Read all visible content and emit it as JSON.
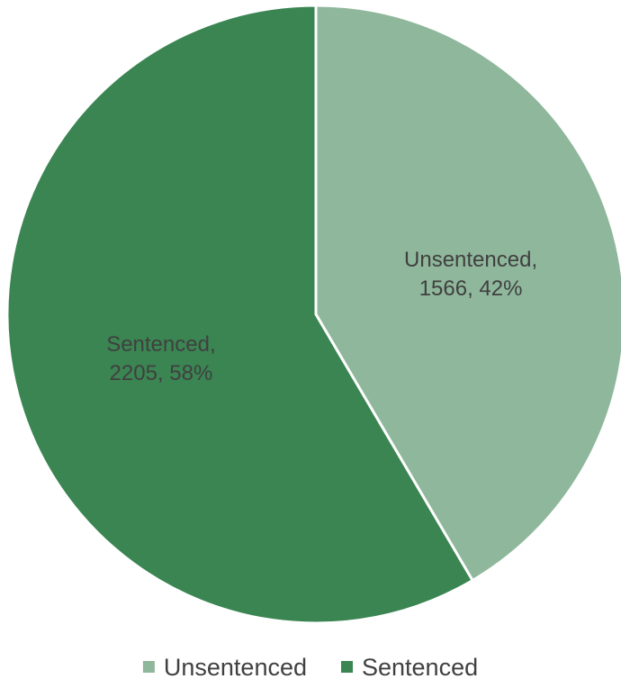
{
  "chart_data": {
    "type": "pie",
    "title": "",
    "slices": [
      {
        "name": "Unsentenced",
        "value": 1566,
        "percent": "42%",
        "label_line1": "Unsentenced,",
        "label_line2": "1566, 42%",
        "color": "#8fb79b"
      },
      {
        "name": "Sentenced",
        "value": 2205,
        "percent": "58%",
        "label_line1": "Sentenced,",
        "label_line2": "2205, 58%",
        "color": "#3a8552"
      }
    ],
    "legend": {
      "placement": "bottom",
      "items": [
        "Unsentenced",
        "Sentenced"
      ]
    },
    "start_angle": "12 o'clock",
    "direction": "clockwise"
  }
}
